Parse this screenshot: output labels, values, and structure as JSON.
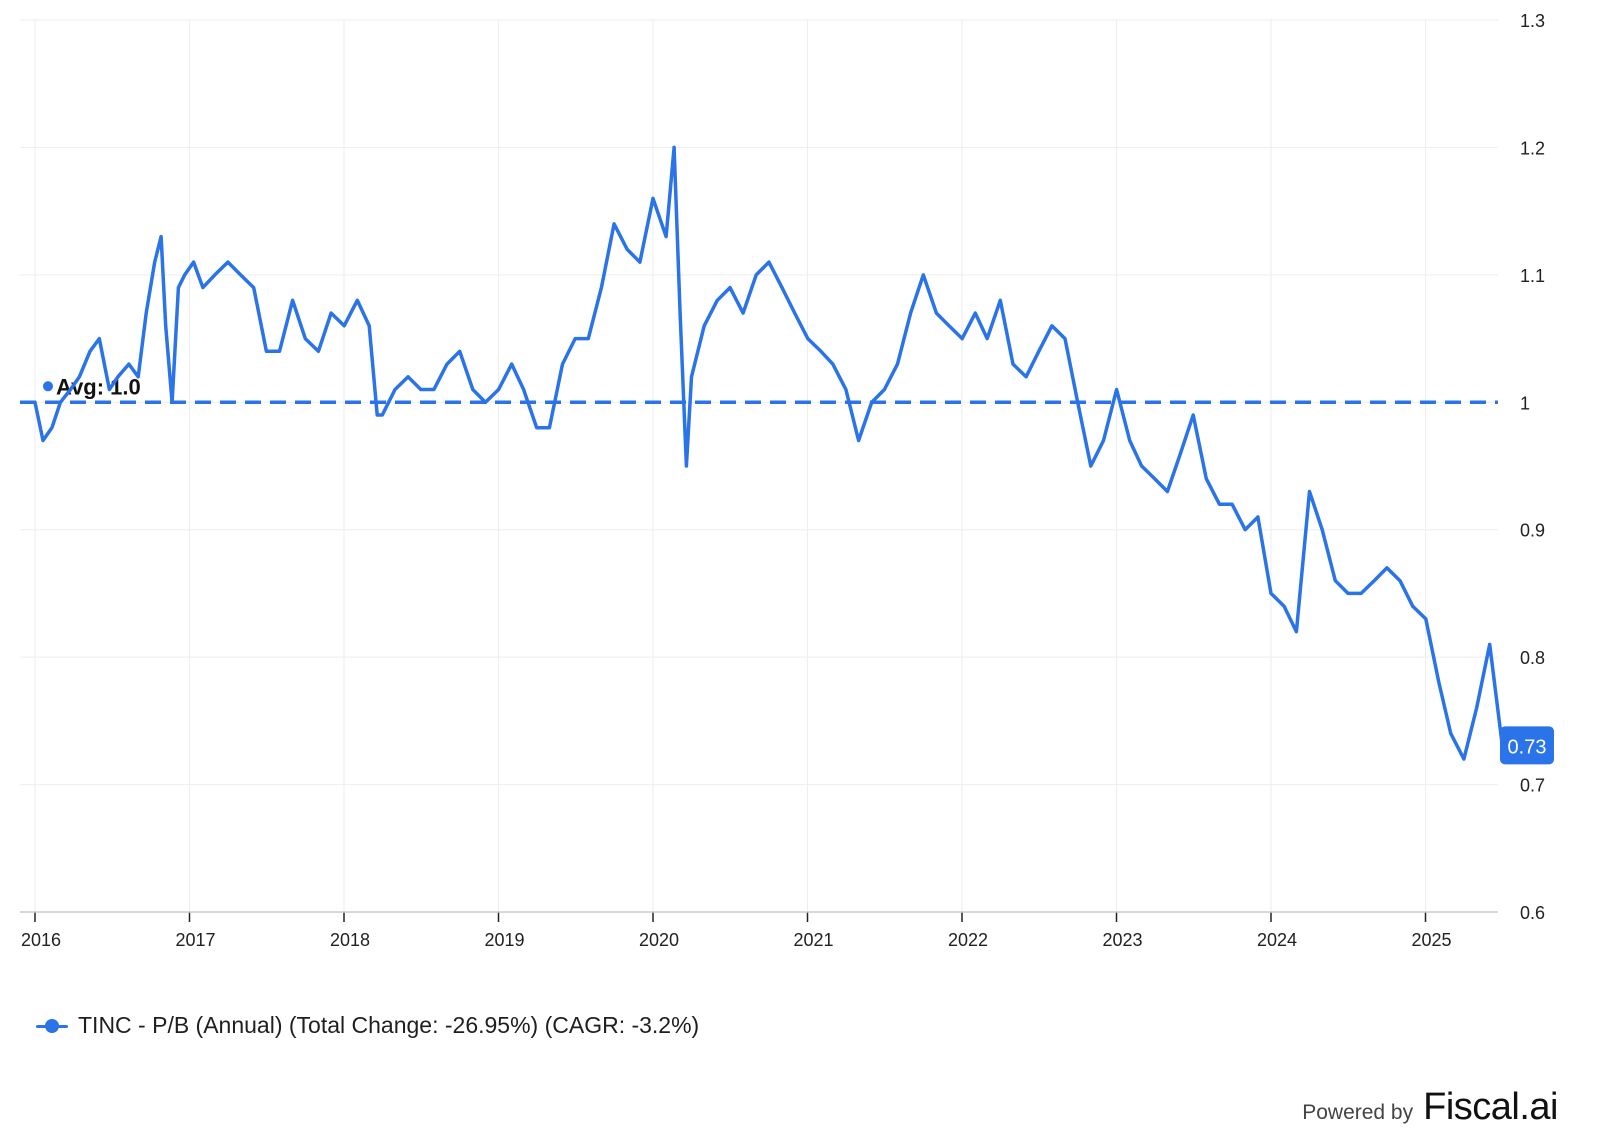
{
  "colors": {
    "series": "#2a73e8",
    "grid": "#eeeeee",
    "axis": "#cccccc",
    "text": "#222222"
  },
  "chart_data": {
    "type": "line",
    "title": "",
    "xlabel": "",
    "ylabel": "",
    "x_range": [
      "2016-01-01",
      "2025-08-01"
    ],
    "ylim": [
      0.6,
      1.3
    ],
    "x_tick_labels": [
      "2016",
      "2017",
      "2018",
      "2019",
      "2020",
      "2021",
      "2022",
      "2023",
      "2024",
      "2025"
    ],
    "y_tick_labels": [
      "0.6",
      "0.7",
      "0.8",
      "0.9",
      "1",
      "1.1",
      "1.2",
      "1.3"
    ],
    "y_ticks": [
      0.6,
      0.7,
      0.8,
      0.9,
      1.0,
      1.1,
      1.2,
      1.3
    ],
    "grid": true,
    "legend_position": "bottom-left",
    "average": {
      "value": 1.0,
      "label": "Avg: 1.0"
    },
    "last_value_label": "0.73",
    "series": [
      {
        "name": "TINC - P/B (Annual) (Total Change: -26.95%) (CAGR: -3.2%)",
        "x": [
          "2016-01-01",
          "2016-01-20",
          "2016-02-10",
          "2016-03-01",
          "2016-03-25",
          "2016-04-15",
          "2016-05-10",
          "2016-06-01",
          "2016-06-25",
          "2016-07-15",
          "2016-08-10",
          "2016-09-01",
          "2016-09-20",
          "2016-10-10",
          "2016-10-25",
          "2016-11-05",
          "2016-11-20",
          "2016-12-05",
          "2016-12-20",
          "2017-01-10",
          "2017-02-01",
          "2017-03-01",
          "2017-04-01",
          "2017-05-01",
          "2017-06-01",
          "2017-07-01",
          "2017-08-01",
          "2017-09-01",
          "2017-10-01",
          "2017-11-01",
          "2017-12-01",
          "2018-01-01",
          "2018-02-01",
          "2018-03-01",
          "2018-03-20",
          "2018-04-01",
          "2018-05-01",
          "2018-06-01",
          "2018-07-01",
          "2018-08-01",
          "2018-09-01",
          "2018-10-01",
          "2018-11-01",
          "2018-12-01",
          "2019-01-01",
          "2019-02-01",
          "2019-03-01",
          "2019-04-01",
          "2019-05-01",
          "2019-06-01",
          "2019-07-01",
          "2019-08-01",
          "2019-09-01",
          "2019-10-01",
          "2019-11-01",
          "2019-12-01",
          "2020-01-01",
          "2020-02-01",
          "2020-02-20",
          "2020-03-05",
          "2020-03-20",
          "2020-04-01",
          "2020-05-01",
          "2020-06-01",
          "2020-07-01",
          "2020-08-01",
          "2020-09-01",
          "2020-10-01",
          "2020-11-01",
          "2020-12-01",
          "2021-01-01",
          "2021-02-01",
          "2021-03-01",
          "2021-04-01",
          "2021-05-01",
          "2021-06-01",
          "2021-07-01",
          "2021-08-01",
          "2021-09-01",
          "2021-10-01",
          "2021-11-01",
          "2021-12-01",
          "2022-01-01",
          "2022-02-01",
          "2022-03-01",
          "2022-04-01",
          "2022-05-01",
          "2022-06-01",
          "2022-07-01",
          "2022-08-01",
          "2022-09-01",
          "2022-10-01",
          "2022-11-01",
          "2022-12-01",
          "2023-01-01",
          "2023-02-01",
          "2023-03-01",
          "2023-04-01",
          "2023-05-01",
          "2023-06-01",
          "2023-07-01",
          "2023-08-01",
          "2023-09-01",
          "2023-10-01",
          "2023-11-01",
          "2023-12-01",
          "2024-01-01",
          "2024-02-01",
          "2024-03-01",
          "2024-04-01",
          "2024-05-01",
          "2024-06-01",
          "2024-07-01",
          "2024-08-01",
          "2024-09-01",
          "2024-10-01",
          "2024-11-01",
          "2024-12-01",
          "2025-01-01",
          "2025-02-01",
          "2025-03-01",
          "2025-04-01",
          "2025-05-01",
          "2025-06-01",
          "2025-07-01",
          "2025-07-20"
        ],
        "values": [
          1.0,
          0.97,
          0.98,
          1.0,
          1.01,
          1.02,
          1.04,
          1.05,
          1.01,
          1.02,
          1.03,
          1.02,
          1.07,
          1.11,
          1.13,
          1.06,
          1.0,
          1.09,
          1.1,
          1.11,
          1.09,
          1.1,
          1.11,
          1.1,
          1.09,
          1.04,
          1.04,
          1.08,
          1.05,
          1.04,
          1.07,
          1.06,
          1.08,
          1.06,
          0.99,
          0.99,
          1.01,
          1.02,
          1.01,
          1.01,
          1.03,
          1.04,
          1.01,
          1.0,
          1.01,
          1.03,
          1.01,
          0.98,
          0.98,
          1.03,
          1.05,
          1.05,
          1.09,
          1.14,
          1.12,
          1.11,
          1.16,
          1.13,
          1.2,
          1.07,
          0.95,
          1.02,
          1.06,
          1.08,
          1.09,
          1.07,
          1.1,
          1.11,
          1.09,
          1.07,
          1.05,
          1.04,
          1.03,
          1.01,
          0.97,
          1.0,
          1.01,
          1.03,
          1.07,
          1.1,
          1.07,
          1.06,
          1.05,
          1.07,
          1.05,
          1.08,
          1.03,
          1.02,
          1.04,
          1.06,
          1.05,
          1.0,
          0.95,
          0.97,
          1.01,
          0.97,
          0.95,
          0.94,
          0.93,
          0.96,
          0.99,
          0.94,
          0.92,
          0.92,
          0.9,
          0.91,
          0.85,
          0.84,
          0.82,
          0.93,
          0.9,
          0.86,
          0.85,
          0.85,
          0.86,
          0.87,
          0.86,
          0.84,
          0.83,
          0.78,
          0.74,
          0.72,
          0.76,
          0.81,
          0.73,
          0.73
        ]
      }
    ]
  },
  "legend": {
    "label": "TINC - P/B (Annual) (Total Change: -26.95%) (CAGR: -3.2%)"
  },
  "branding": {
    "powered_by": "Powered by",
    "logo_text": "Fiscal.ai"
  }
}
